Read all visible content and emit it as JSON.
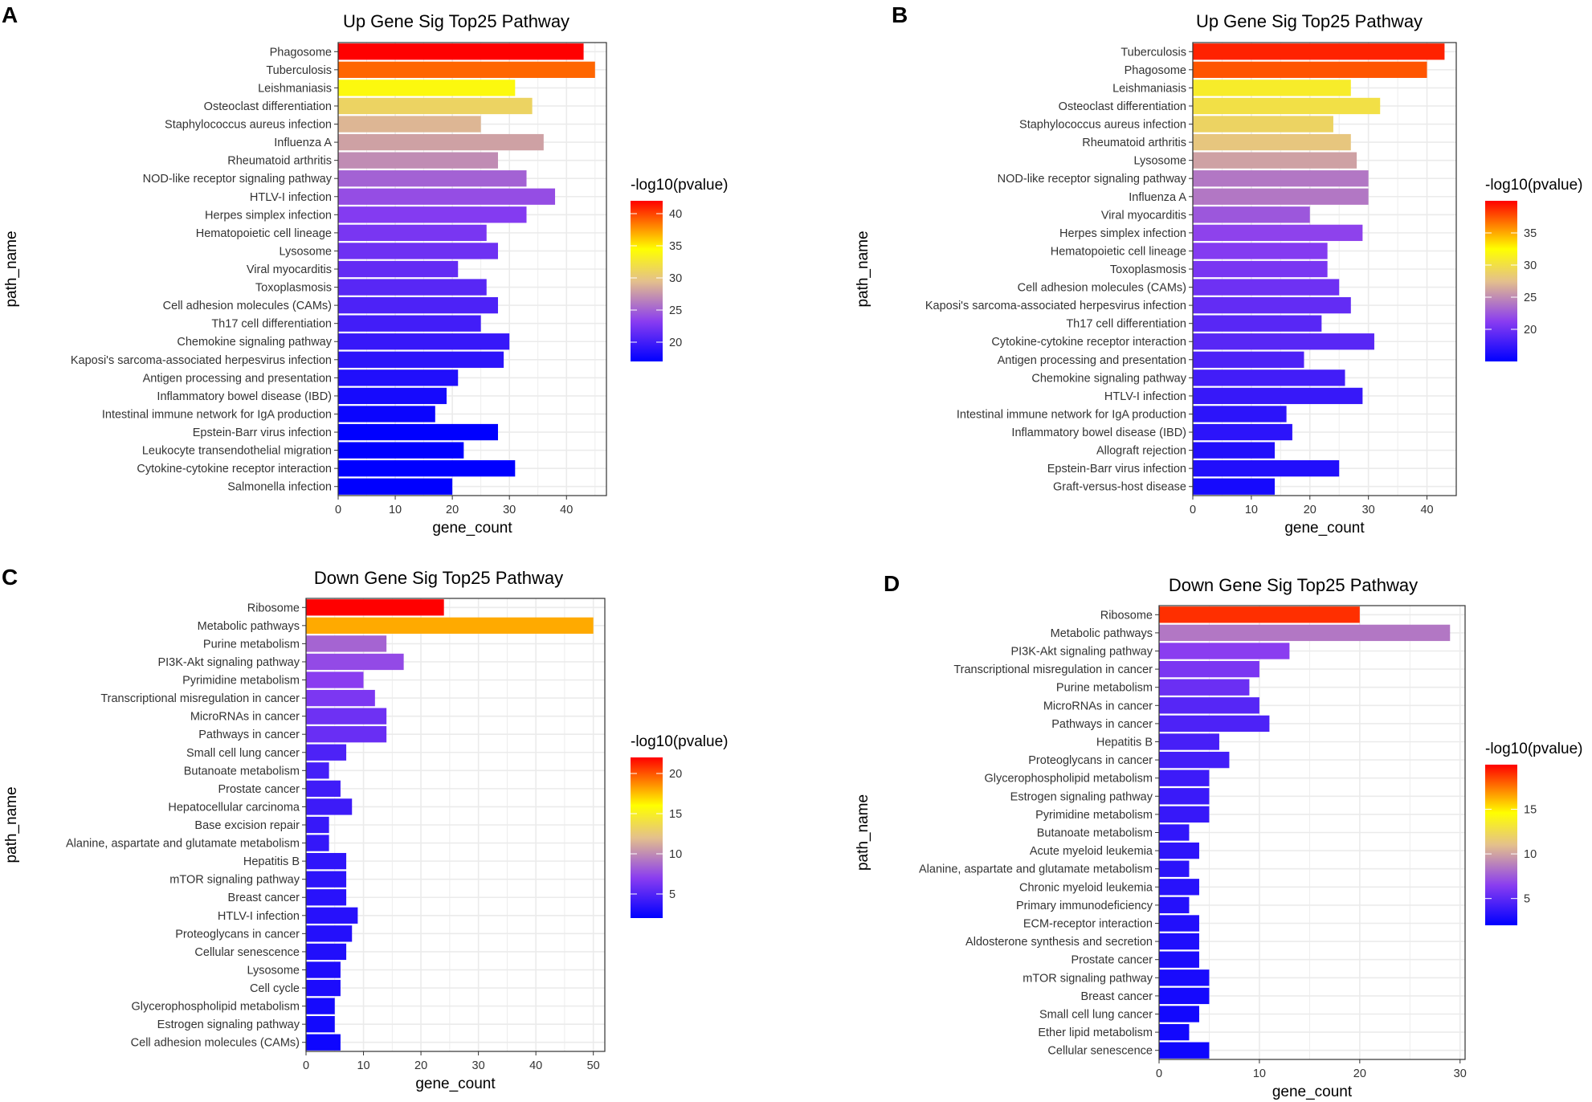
{
  "chart_data": [
    {
      "panel_label": "A",
      "type": "bar",
      "orientation": "horizontal",
      "title": "Up Gene Sig Top25 Pathway",
      "xlabel": "gene_count",
      "ylabel": "path_name",
      "xlim": [
        0,
        47
      ],
      "xticks": [
        0,
        10,
        20,
        30,
        40
      ],
      "categories": [
        "Phagosome",
        "Tuberculosis",
        "Leishmaniasis",
        "Osteoclast differentiation",
        "Staphylococcus aureus infection",
        "Influenza A",
        "Rheumatoid arthritis",
        "NOD-like receptor signaling pathway",
        "HTLV-I infection",
        "Herpes simplex infection",
        "Hematopoietic cell lineage",
        "Lysosome",
        "Viral myocarditis",
        "Toxoplasmosis",
        "Cell adhesion molecules (CAMs)",
        "Th17 cell differentiation",
        "Chemokine signaling pathway",
        "Kaposi's sarcoma-associated herpesvirus infection",
        "Antigen processing and presentation",
        "Inflammatory bowel disease (IBD)",
        "Intestinal immune network for IgA production",
        "Epstein-Barr virus infection",
        "Leukocyte transendothelial migration",
        "Cytokine-cytokine receptor interaction",
        "Salmonella infection"
      ],
      "values": [
        43,
        45,
        31,
        34,
        25,
        36,
        28,
        33,
        38,
        33,
        26,
        28,
        21,
        26,
        28,
        25,
        30,
        29,
        21,
        19,
        17,
        28,
        22,
        31,
        20
      ],
      "color_values": [
        42,
        39,
        34,
        31,
        29,
        28,
        27,
        25,
        24,
        23,
        22.5,
        22,
        21.5,
        21,
        20.5,
        20,
        19.5,
        19,
        18.5,
        18,
        17.5,
        17,
        16.5,
        16,
        15.5
      ],
      "legend": {
        "title": "-log10(pvalue)",
        "min": 17,
        "max": 42,
        "ticks": [
          20,
          25,
          30,
          35,
          40
        ]
      }
    },
    {
      "panel_label": "B",
      "type": "bar",
      "orientation": "horizontal",
      "title": "Up Gene Sig Top25 Pathway",
      "xlabel": "gene_count",
      "ylabel": "path_name",
      "xlim": [
        0,
        45
      ],
      "xticks": [
        0,
        10,
        20,
        30,
        40
      ],
      "categories": [
        "Tuberculosis",
        "Phagosome",
        "Leishmaniasis",
        "Osteoclast differentiation",
        "Staphylococcus aureus infection",
        "Rheumatoid arthritis",
        "Lysosome",
        "NOD-like receptor signaling pathway",
        "Influenza A",
        "Viral myocarditis",
        "Herpes simplex infection",
        "Hematopoietic cell lineage",
        "Toxoplasmosis",
        "Cell adhesion molecules (CAMs)",
        "Kaposi's sarcoma-associated herpesvirus infection",
        "Th17 cell differentiation",
        "Cytokine-cytokine receptor interaction",
        "Antigen processing and presentation",
        "Chemokine signaling pathway",
        "HTLV-I infection",
        "Intestinal immune network for IgA production",
        "Inflammatory bowel disease (IBD)",
        "Allograft rejection",
        "Epstein-Barr virus infection",
        "Graft-versus-host disease"
      ],
      "values": [
        43,
        40,
        27,
        32,
        24,
        27,
        28,
        30,
        30,
        20,
        29,
        23,
        23,
        25,
        27,
        22,
        31,
        19,
        26,
        29,
        16,
        17,
        14,
        25,
        14
      ],
      "color_values": [
        39,
        37.5,
        31,
        30,
        29,
        28,
        26,
        24,
        24,
        22.5,
        21.5,
        21,
        20.5,
        20,
        19.5,
        19,
        19,
        18.5,
        18,
        17.5,
        17,
        17,
        16.5,
        16.5,
        16
      ],
      "legend": {
        "title": "-log10(pvalue)",
        "min": 15,
        "max": 40,
        "ticks": [
          20,
          25,
          30,
          35
        ]
      }
    },
    {
      "panel_label": "C",
      "type": "bar",
      "orientation": "horizontal",
      "title": "Down Gene Sig Top25 Pathway",
      "xlabel": "gene_count",
      "ylabel": "path_name",
      "xlim": [
        0,
        52
      ],
      "xticks": [
        0,
        10,
        20,
        30,
        40,
        50
      ],
      "categories": [
        "Ribosome",
        "Metabolic pathways",
        "Purine metabolism",
        "PI3K-Akt signaling pathway",
        "Pyrimidine metabolism",
        "Transcriptional misregulation in cancer",
        "MicroRNAs in cancer",
        "Pathways in cancer",
        "Small cell lung cancer",
        "Butanoate metabolism",
        "Prostate cancer",
        "Hepatocellular carcinoma",
        "Base excision repair",
        "Alanine, aspartate and glutamate metabolism",
        "Hepatitis B",
        "mTOR signaling pathway",
        "Breast cancer",
        "HTLV-I infection",
        "Proteoglycans in cancer",
        "Cellular senescence",
        "Lysosome",
        "Cell cycle",
        "Glycerophospholipid metabolism",
        "Estrogen signaling pathway",
        "Cell adhesion molecules (CAMs)"
      ],
      "values": [
        24,
        50,
        14,
        17,
        10,
        12,
        14,
        14,
        7,
        4,
        6,
        8,
        4,
        4,
        7,
        7,
        7,
        9,
        8,
        7,
        6,
        6,
        5,
        5,
        6
      ],
      "color_values": [
        22,
        18,
        8.5,
        7.5,
        7,
        6.5,
        6,
        5.8,
        4.8,
        4.5,
        4.3,
        4.2,
        4,
        3.9,
        3.7,
        3.6,
        3.5,
        3.4,
        3.3,
        3.2,
        3.1,
        3,
        2.8,
        2.7,
        2.5
      ],
      "legend": {
        "title": "-log10(pvalue)",
        "min": 2,
        "max": 22,
        "ticks": [
          5,
          10,
          15,
          20
        ]
      }
    },
    {
      "panel_label": "D",
      "type": "bar",
      "orientation": "horizontal",
      "title": "Down Gene Sig Top25 Pathway",
      "xlabel": "gene_count",
      "ylabel": "path_name",
      "xlim": [
        0,
        30.5
      ],
      "xticks": [
        0,
        10,
        20,
        30
      ],
      "categories": [
        "Ribosome",
        "Metabolic pathways",
        "PI3K-Akt signaling pathway",
        "Transcriptional misregulation in cancer",
        "Purine metabolism",
        "MicroRNAs in cancer",
        "Pathways in cancer",
        "Hepatitis B",
        "Proteoglycans in cancer",
        "Glycerophospholipid metabolism",
        "Estrogen signaling pathway",
        "Pyrimidine metabolism",
        "Butanoate metabolism",
        "Acute myeloid leukemia",
        "Alanine, aspartate and glutamate metabolism",
        "Chronic myeloid leukemia",
        "Primary immunodeficiency",
        "ECM-receptor interaction",
        "Aldosterone synthesis and secretion",
        "Prostate cancer",
        "mTOR signaling pathway",
        "Breast cancer",
        "Small cell lung cancer",
        "Ether lipid metabolism",
        "Cellular senescence"
      ],
      "values": [
        20,
        29,
        13,
        10,
        9,
        10,
        11,
        6,
        7,
        5,
        5,
        5,
        3,
        4,
        3,
        4,
        3,
        4,
        4,
        4,
        5,
        5,
        4,
        3,
        5
      ],
      "color_values": [
        19,
        8.5,
        6.5,
        6,
        5.5,
        4.8,
        4.5,
        4.3,
        4.2,
        4,
        3.9,
        3.8,
        3.6,
        3.5,
        3.4,
        3.3,
        3.2,
        3.1,
        3,
        2.9,
        2.8,
        2.7,
        2.6,
        2.6,
        2.5
      ],
      "legend": {
        "title": "-log10(pvalue)",
        "min": 2,
        "max": 20,
        "ticks": [
          5,
          10,
          15
        ]
      }
    }
  ]
}
